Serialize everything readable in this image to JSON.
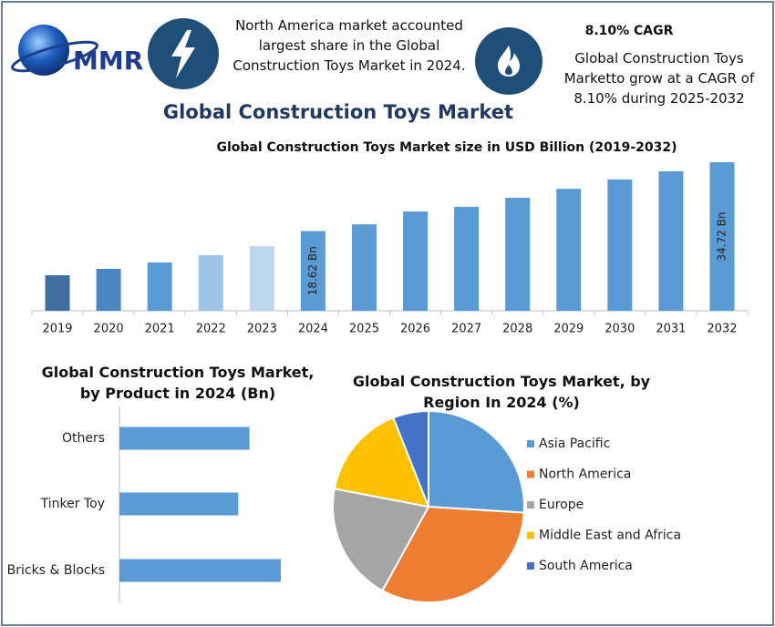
{
  "header": {
    "logo": "MMR",
    "note_left": "North America market accounted largest share in the Global Construction Toys Market in 2024.",
    "note_right_title": "8.10% CAGR",
    "note_right": "Global Construction Toys Marketto grow at a CAGR of 8.10% during 2025-2032",
    "title": "Global Construction Toys Market"
  },
  "chart_data": [
    {
      "type": "bar",
      "title": "Global Construction Toys Market size in USD Billion (2019-2032)",
      "categories": [
        "2019",
        "2020",
        "2021",
        "2022",
        "2023",
        "2024",
        "2025",
        "2026",
        "2027",
        "2028",
        "2029",
        "2030",
        "2031",
        "2032"
      ],
      "values": [
        8.3,
        9.8,
        11.3,
        13.0,
        15.1,
        18.62,
        20.2,
        23.2,
        24.3,
        26.4,
        28.5,
        30.7,
        32.6,
        34.72
      ],
      "value_labels": [
        null,
        null,
        null,
        null,
        null,
        "18.62 Bn",
        null,
        null,
        null,
        null,
        null,
        null,
        null,
        "34.72 Bn"
      ],
      "colors": [
        "#3f6f9f",
        "#4a86c0",
        "#5b9bd5",
        "#9dc3e6",
        "#bdd7ee",
        "#5b9bd5",
        "#5b9bd5",
        "#5b9bd5",
        "#5b9bd5",
        "#5b9bd5",
        "#5b9bd5",
        "#5b9bd5",
        "#5b9bd5",
        "#5b9bd5"
      ]
    },
    {
      "type": "hbar",
      "title": "Global Construction Toys Market, by Product in 2024 (Bn)",
      "categories": [
        "Others",
        "Tinker Toy",
        "Bricks & Blocks"
      ],
      "values": [
        5.8,
        5.3,
        7.2
      ],
      "color": "#5b9bd5"
    },
    {
      "type": "pie",
      "title": "Global Construction Toys Market, by Region In 2024 (%)",
      "categories": [
        "Asia Pacific",
        "North America",
        "Europe",
        "Middle East and Africa",
        "South America"
      ],
      "values": [
        26,
        32,
        20,
        16,
        6
      ],
      "colors": [
        "#5b9bd5",
        "#ed7d31",
        "#a5a5a5",
        "#ffc000",
        "#4472c4"
      ]
    }
  ]
}
